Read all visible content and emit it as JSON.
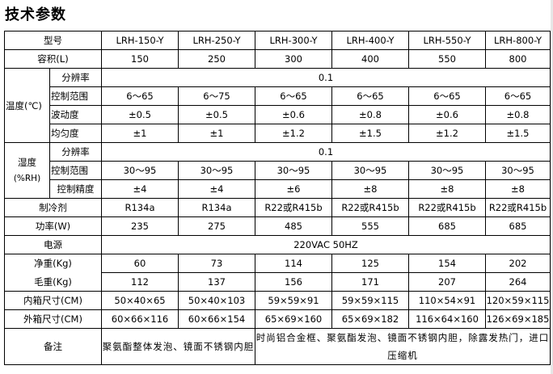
{
  "title": "技术参数",
  "header": {
    "label": "型号",
    "models": [
      "LRH-150-Y",
      "LRH-250-Y",
      "LRH-300-Y",
      "LRH-400-Y",
      "LRH-550-Y",
      "LRH-800-Y"
    ]
  },
  "volume": {
    "label": "容积(L)",
    "values": [
      "150",
      "250",
      "300",
      "400",
      "550",
      "800"
    ]
  },
  "temperature": {
    "label": "温度(℃)",
    "resolution": {
      "label": "分辨率",
      "value": "0.1"
    },
    "range": {
      "label": "控制范围",
      "values": [
        "6～65",
        "6～75",
        "6～65",
        "6～65",
        "6～65",
        "6～65"
      ]
    },
    "fluctuation": {
      "label": "波动度",
      "values": [
        "±0.5",
        "±0.5",
        "±0.6",
        "±0.8",
        "±0.6",
        "±0.8"
      ]
    },
    "uniformity": {
      "label": "均匀度",
      "values": [
        "±1",
        "±1",
        "±1.2",
        "±1.5",
        "±1.2",
        "±1.5"
      ]
    }
  },
  "humidity": {
    "label": "湿度",
    "unit": "(%RH)",
    "resolution": {
      "label": "分辨率",
      "value": "0.1"
    },
    "range": {
      "label": "控制范围",
      "values": [
        "30～95",
        "30～95",
        "30～95",
        "30～95",
        "30～95",
        "30～95"
      ]
    },
    "accuracy": {
      "label": "控制精度",
      "values": [
        "±4",
        "±4",
        "±6",
        "±8",
        "±8",
        "±8"
      ]
    }
  },
  "refrigerant": {
    "label": "制冷剂",
    "values": [
      "R134a",
      "R134a",
      "R22或R415b",
      "R22或R415b",
      "R22或R415b",
      "R22或R415b"
    ]
  },
  "power": {
    "label": "功率(W)",
    "values": [
      "235",
      "275",
      "485",
      "555",
      "685",
      "685"
    ]
  },
  "supply": {
    "label": "电源",
    "value": "220VAC 50HZ"
  },
  "net_weight": {
    "label": "净重(Kg)",
    "values": [
      "60",
      "73",
      "114",
      "125",
      "154",
      "202"
    ]
  },
  "gross_weight": {
    "label": "毛重(Kg)",
    "values": [
      "112",
      "137",
      "156",
      "171",
      "207",
      "264"
    ]
  },
  "inner": {
    "label": "内箱尺寸(CM)",
    "values": [
      "50×40×65",
      "50×40×103",
      "59×59×91",
      "59×59×115",
      "110×54×91",
      "120×59×115"
    ]
  },
  "outer": {
    "label": "外箱尺寸(CM)",
    "values": [
      "60×66×116",
      "60×66×154",
      "65×69×160",
      "65×69×182",
      "116×64×160",
      "126×69×185"
    ]
  },
  "remarks": {
    "label": "备注",
    "note_a": "聚氨酯整体发泡、镜面不锈钢内胆",
    "note_b": "时尚铝合金框、聚氨酯发泡、镜面不锈钢内胆，除露发热门，进口压缩机"
  }
}
